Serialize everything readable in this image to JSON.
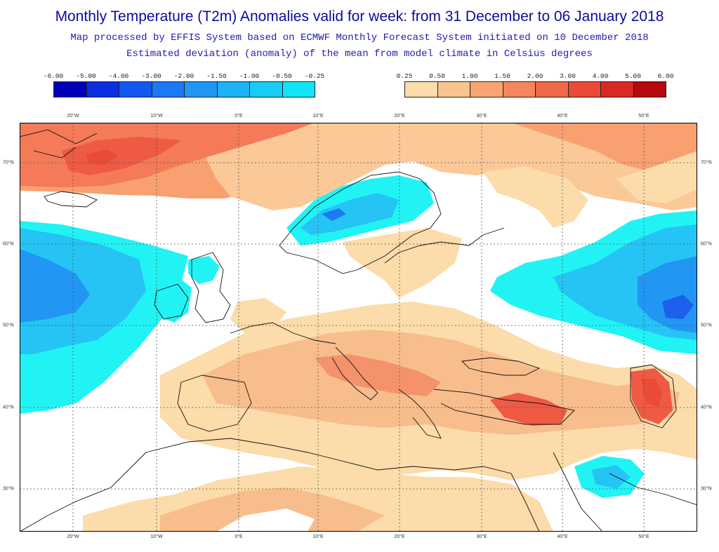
{
  "title": "Monthly Temperature (T2m) Anomalies valid for week: from 31 December to 06 January 2018",
  "subtitle1": "Map processed by EFFIS System based on ECMWF Monthly Forecast System initiated on 10 December 2018",
  "subtitle2": "Estimated deviation (anomaly) of the mean from model climate in Celsius degrees",
  "colorbar_negative": {
    "labels": [
      "-6.00",
      "-5.00",
      "-4.00",
      "-3.00",
      "-2.00",
      "-1.50",
      "-1.00",
      "-0.50",
      "-0.25"
    ],
    "colors": [
      "#0000b8",
      "#0a2ee0",
      "#1258f0",
      "#1c78f4",
      "#2196f3",
      "#1cb2f5",
      "#18ccf6",
      "#12e4f7"
    ]
  },
  "colorbar_positive": {
    "labels": [
      "0.25",
      "0.50",
      "1.00",
      "1.50",
      "2.00",
      "3.00",
      "4.00",
      "5.00",
      "6.00"
    ],
    "colors": [
      "#fcdcaa",
      "#fbc48e",
      "#f8a472",
      "#f5875c",
      "#f06a48",
      "#ea4a36",
      "#d82a22",
      "#b40a10"
    ]
  },
  "axes": {
    "x_ticks": [
      "20°W",
      "10°W",
      "0°E",
      "10°E",
      "20°E",
      "30°E",
      "40°E",
      "50°E"
    ],
    "y_ticks": [
      "70°N",
      "60°N",
      "50°N",
      "40°N",
      "30°N"
    ]
  },
  "legend_colors": {
    "water_cyan": "#21f3f4",
    "light_blue": "#25c4f5",
    "mid_blue": "#2196f3",
    "dark_blue": "#1c60ee",
    "orange_light": "#fcdcaa",
    "orange_mid": "#f8bd8c",
    "orange_dark": "#f4926b",
    "red": "#ee5a44"
  }
}
